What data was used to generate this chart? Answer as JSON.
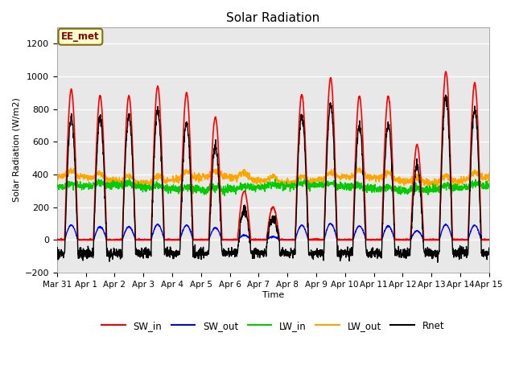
{
  "title": "Solar Radiation",
  "ylabel": "Solar Radiation (W/m2)",
  "xlabel": "Time",
  "ylim": [
    -200,
    1300
  ],
  "yticks": [
    -200,
    0,
    200,
    400,
    600,
    800,
    1000,
    1200
  ],
  "xtick_labels": [
    "Mar 31",
    "Apr 1",
    "Apr 2",
    "Apr 3",
    "Apr 4",
    "Apr 5",
    "Apr 6",
    "Apr 7",
    "Apr 8",
    "Apr 9",
    "Apr 10",
    "Apr 11",
    "Apr 12",
    "Apr 13",
    "Apr 14",
    "Apr 15"
  ],
  "annotation_text": "EE_met",
  "annotation_color": "#8B0000",
  "annotation_bg": "#FFFFCC",
  "annotation_border": "#8B6914",
  "colors": {
    "SW_in": "#FF0000",
    "SW_out": "#0000FF",
    "LW_in": "#00CC00",
    "LW_out": "#FFA500",
    "Rnet": "#000000"
  },
  "plot_bg": "#E8E8E8",
  "fig_bg": "#FFFFFF",
  "grid_color": "#FFFFFF",
  "num_days": 15,
  "pts_per_day": 144,
  "sw_in_peaks": [
    920,
    880,
    880,
    940,
    900,
    750,
    300,
    200,
    890,
    990,
    880,
    880,
    580,
    1030,
    960
  ],
  "sw_out_peaks": [
    90,
    80,
    80,
    95,
    90,
    75,
    30,
    20,
    90,
    100,
    85,
    85,
    55,
    95,
    90
  ],
  "night_rnet": -80,
  "lw_in_base": 320,
  "lw_out_base": 370
}
